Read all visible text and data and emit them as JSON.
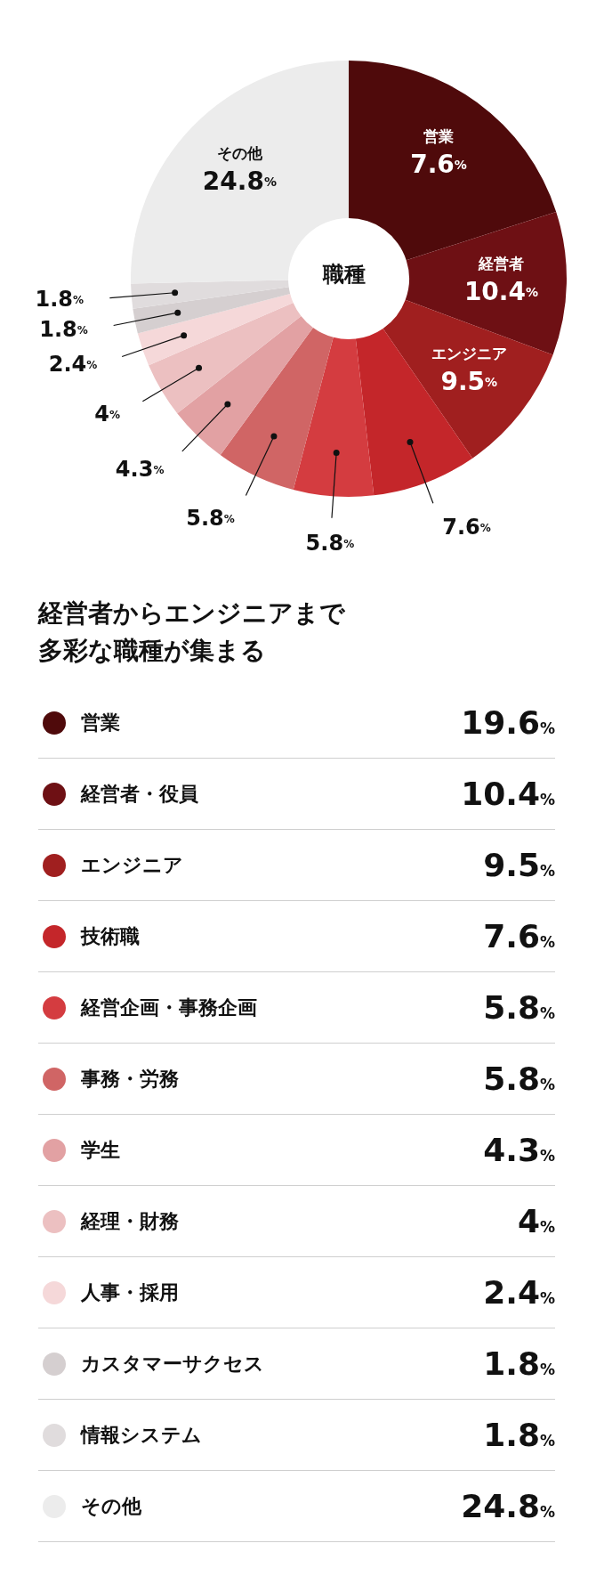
{
  "chart_data": {
    "type": "donut",
    "title": "経営者からエンジニアまで多彩な職種が集まる",
    "categories": [
      "営業",
      "経営者・役員",
      "エンジニア",
      "技術職",
      "経営企画・事務企画",
      "事務・労務",
      "学生",
      "経理・財務",
      "人事・採用",
      "カスタマーサクセス",
      "情報システム",
      "その他"
    ],
    "values": [
      19.6,
      10.4,
      9.5,
      7.6,
      5.8,
      5.8,
      4.3,
      4,
      2.4,
      1.8,
      1.8,
      24.8
    ],
    "value_labels": [
      "19.6%",
      "10.4%",
      "9.5%",
      "7.6%",
      "5.8%",
      "5.8%",
      "4.3%",
      "4%",
      "2.4%",
      "1.8%",
      "1.8%",
      "24.8%"
    ],
    "colors": [
      "#4f0a0b",
      "#6e1014",
      "#a01f1f",
      "#c4262a",
      "#d43c40",
      "#d06565",
      "#e2a1a3",
      "#ecc0c1",
      "#f5d8d9",
      "#d5cfd0",
      "#e0dcdd",
      "#ececec"
    ],
    "annotations": [
      {
        "text": "営業\n7.6%",
        "x": "営業"
      },
      {
        "text": "経営者\n10.4%",
        "x": "経営者・役員"
      },
      {
        "text": "エンジニア\n9.5%",
        "x": "エンジニア"
      },
      {
        "text": "その他\n24.8%",
        "x": "その他"
      },
      "職種"
    ],
    "legend": "bottom"
  }
}
